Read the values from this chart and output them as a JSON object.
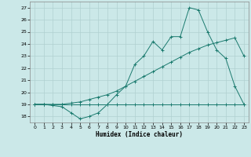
{
  "xlabel": "Humidex (Indice chaleur)",
  "bg_color": "#cbe8e8",
  "grid_color": "#b0d0d0",
  "line_color": "#1a7a6e",
  "x_ticks": [
    0,
    1,
    2,
    3,
    4,
    5,
    6,
    7,
    8,
    9,
    10,
    11,
    12,
    13,
    14,
    15,
    16,
    17,
    18,
    19,
    20,
    21,
    22,
    23
  ],
  "y_ticks": [
    18,
    19,
    20,
    21,
    22,
    23,
    24,
    25,
    26,
    27
  ],
  "ylim": [
    17.5,
    27.5
  ],
  "xlim": [
    -0.5,
    23.5
  ],
  "line1_x": [
    0,
    1,
    2,
    3,
    4,
    5,
    6,
    7,
    8,
    9,
    10,
    11,
    12,
    13,
    14,
    15,
    16,
    17,
    18,
    19,
    20,
    21,
    22,
    23
  ],
  "line1_y": [
    19,
    19,
    19,
    19,
    19,
    19,
    19,
    19,
    19,
    19,
    19,
    19,
    19,
    19,
    19,
    19,
    19,
    19,
    19,
    19,
    19,
    19,
    19,
    19
  ],
  "line2_x": [
    0,
    1,
    2,
    3,
    4,
    5,
    6,
    7,
    8,
    9,
    10,
    11,
    12,
    13,
    14,
    15,
    16,
    17,
    18,
    19,
    20,
    21,
    22,
    23
  ],
  "line2_y": [
    19.0,
    19.0,
    19.0,
    19.0,
    19.1,
    19.2,
    19.4,
    19.6,
    19.8,
    20.1,
    20.5,
    20.9,
    21.3,
    21.7,
    22.1,
    22.5,
    22.9,
    23.3,
    23.6,
    23.9,
    24.1,
    24.3,
    24.5,
    23.0
  ],
  "line3_x": [
    0,
    1,
    2,
    3,
    4,
    5,
    6,
    7,
    8,
    9,
    10,
    11,
    12,
    13,
    14,
    15,
    16,
    17,
    18,
    19,
    20,
    21,
    22,
    23
  ],
  "line3_y": [
    19.0,
    19.0,
    18.9,
    18.8,
    18.3,
    17.8,
    18.0,
    18.3,
    19.0,
    19.8,
    20.5,
    22.3,
    23.0,
    24.2,
    23.5,
    24.6,
    24.6,
    27.0,
    26.8,
    25.0,
    23.5,
    22.8,
    20.5,
    19.0
  ]
}
